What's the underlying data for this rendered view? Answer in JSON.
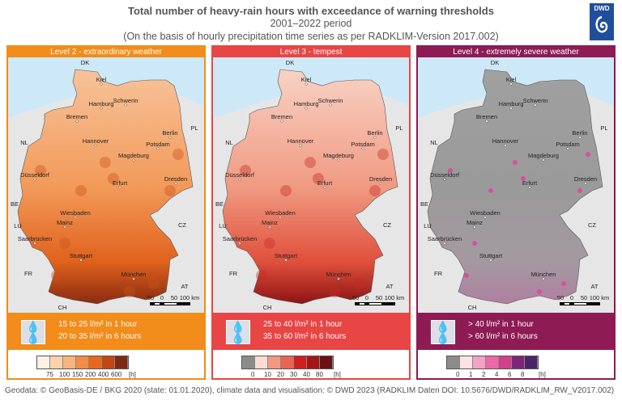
{
  "title": "Total number of heavy-rain hours with exceedance of warning thresholds",
  "period": "2001–2022 period",
  "subtitle": "(On the basis of hourly precipitation time series as per RADKLIM-Version 2017.002)",
  "logo": "DWD",
  "cities": [
    "Kiel",
    "Hamburg",
    "Schwerin",
    "Bremen",
    "Hannover",
    "Berlin",
    "Potsdam",
    "Magdeburg",
    "Düsseldorf",
    "Erfurt",
    "Dresden",
    "Wiesbaden",
    "Mainz",
    "Saarbrücken",
    "Stuttgart",
    "München"
  ],
  "countries": [
    "DK",
    "PL",
    "NL",
    "BE",
    "LU",
    "CZ",
    "FR",
    "AT",
    "CH"
  ],
  "scale_labels": [
    "50",
    "0",
    "50",
    "100 km"
  ],
  "panels": [
    {
      "title": "Level 2 - extraordinary weather",
      "color": "#f28c1a",
      "line1": "15 to 25 l/m² in 1 hour",
      "line2": "20 to 35 l/m² in 6 hours",
      "legend_colors": [
        "#fdf0e4",
        "#fcd2ac",
        "#f9b57d",
        "#f28c4a",
        "#e9661a",
        "#c14713",
        "#7f2a12"
      ],
      "legend_labels": [
        "75",
        "100",
        "150",
        "200",
        "400",
        "600"
      ],
      "unit": "[h]",
      "map_colors": [
        "#f7c39a",
        "#f29a5a",
        "#e0621c",
        "#8a2b10"
      ],
      "spot": "#c75218"
    },
    {
      "title": "Level 3 - tempest",
      "color": "#e84545",
      "line1": "25 to 40 l/m² in 1 hour",
      "line2": "35 to 60 l/m² in 6 hours",
      "legend_colors": [
        "#8c8c8c",
        "#fbdcd2",
        "#f29a80",
        "#ea6450",
        "#d11f1f",
        "#a51717",
        "#6b1212"
      ],
      "legend_labels": [
        "0",
        "10",
        "20",
        "30",
        "40",
        "80"
      ],
      "unit": "[h]",
      "map_colors": [
        "#f8d2c4",
        "#f09a82",
        "#e0503c",
        "#8e1414"
      ],
      "spot": "#c62a22"
    },
    {
      "title": "Level 4 - extremely severe weather",
      "color": "#8e1b54",
      "line1": "> 40 l/m² in 1 hour",
      "line2": "> 60 l/m² in 6 hours",
      "legend_colors": [
        "#8c8c8c",
        "#fde3e6",
        "#f4a2c3",
        "#ea6aa6",
        "#d2408b",
        "#7d2679",
        "#4b2468"
      ],
      "legend_labels": [
        "0",
        "1",
        "2",
        "4",
        "6",
        "8"
      ],
      "unit": "[h]",
      "map_colors": [
        "#a0a0a0",
        "#9a9a9a",
        "#a39aa0",
        "#b07fa0"
      ],
      "spot": "#e040a0"
    }
  ],
  "footer": "Geodata: © GeoBasis-DE / BKG 2020 (state: 01.01.2020), climate data and visualisation: © DWD 2023 (RADKLIM Daten DOI: 10.5676/DWD/RADKLIM_RW_V2017.002)"
}
